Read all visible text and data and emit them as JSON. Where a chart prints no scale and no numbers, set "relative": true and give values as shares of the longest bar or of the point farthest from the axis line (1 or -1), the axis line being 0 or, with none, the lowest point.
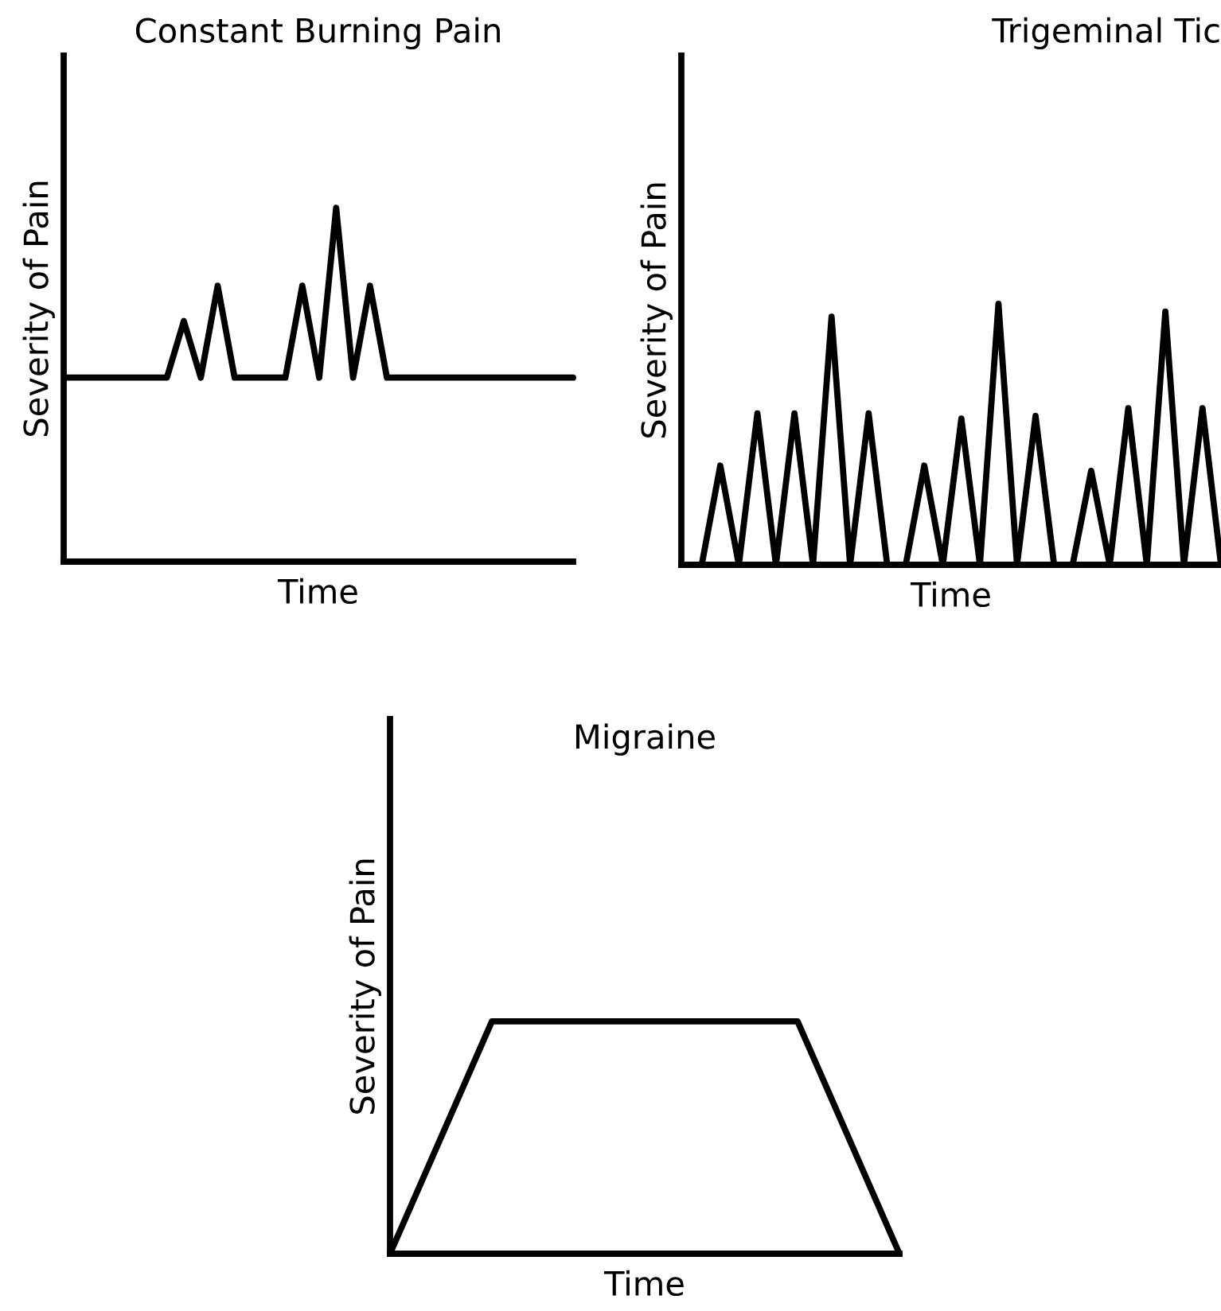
{
  "chart_data": [
    {
      "type": "line",
      "title": "Constant Burning Pain",
      "xlabel": "Time",
      "ylabel": "Severity of Pain",
      "relative": true,
      "categories": [
        null,
        null,
        null,
        null,
        null,
        null,
        null,
        null,
        null,
        null,
        null,
        null,
        null,
        null,
        null,
        null,
        null,
        null,
        null,
        null,
        null,
        null,
        null,
        null,
        null,
        null,
        null,
        null,
        null,
        null,
        null
      ],
      "series": [
        {
          "color": "#000000",
          "values": [
            0.52,
            0.52,
            0.52,
            0.52,
            0.52,
            0.52,
            0.52,
            0.68,
            0.52,
            0.78,
            0.52,
            0.52,
            0.52,
            0.52,
            0.78,
            0.52,
            1.0,
            0.52,
            0.78,
            0.52,
            0.52,
            0.52,
            0.52,
            0.52,
            0.52,
            0.52,
            0.52,
            0.52,
            0.52,
            0.52,
            0.52
          ]
        }
      ]
    },
    {
      "type": "line",
      "title": "Trigeminal Tic",
      "xlabel": "Time",
      "ylabel": "Severity of Pain",
      "relative": true,
      "categories": [
        null,
        null,
        null,
        null,
        null,
        null,
        null,
        null,
        null,
        null,
        null,
        null,
        null,
        null,
        null,
        null,
        null,
        null,
        null,
        null,
        null,
        null,
        null,
        null,
        null,
        null,
        null,
        null,
        null,
        null
      ],
      "series": [
        {
          "color": "#000000",
          "values": [
            0,
            0,
            0.38,
            0,
            0.58,
            0,
            0.58,
            0,
            0.95,
            0,
            0.58,
            0,
            0,
            0.38,
            0,
            0.56,
            0,
            1.0,
            0,
            0.57,
            0,
            0,
            0.36,
            0,
            0.6,
            0,
            0.97,
            0,
            0.6,
            0
          ]
        }
      ]
    },
    {
      "type": "line",
      "title": "Migraine",
      "xlabel": "Time",
      "ylabel": "Severity of Pain",
      "relative": true,
      "categories": [
        null,
        null,
        null,
        null,
        null,
        null
      ],
      "series": [
        {
          "color": "#000000",
          "values": [
            0,
            1,
            1,
            1,
            1,
            0
          ]
        }
      ]
    }
  ]
}
